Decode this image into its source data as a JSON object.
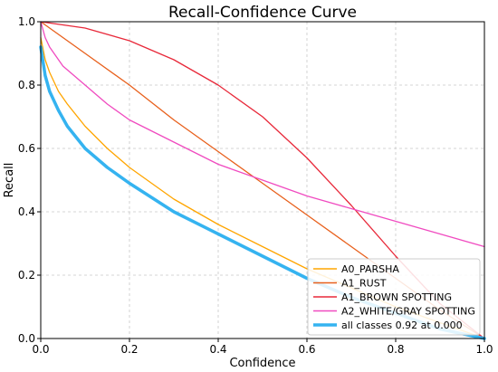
{
  "chart_data": {
    "type": "line",
    "title": "Recall-Confidence Curve",
    "xlabel": "Confidence",
    "ylabel": "Recall",
    "xlim": [
      0,
      1
    ],
    "ylim": [
      0,
      1
    ],
    "xticks": [
      "0.0",
      "0.2",
      "0.4",
      "0.6",
      "0.8",
      "1.0"
    ],
    "yticks": [
      "0.0",
      "0.2",
      "0.4",
      "0.6",
      "0.8",
      "1.0"
    ],
    "grid": true,
    "legend_position": "lower-right",
    "series": [
      {
        "name": "A0_PARSHA",
        "color": "#ffa500",
        "line_width": "normal",
        "x": [
          0.0,
          0.01,
          0.02,
          0.04,
          0.06,
          0.1,
          0.15,
          0.2,
          0.3,
          0.4,
          0.5,
          0.6,
          0.7,
          0.8,
          0.9,
          1.0
        ],
        "y": [
          0.95,
          0.88,
          0.84,
          0.78,
          0.74,
          0.67,
          0.6,
          0.54,
          0.44,
          0.36,
          0.29,
          0.22,
          0.16,
          0.1,
          0.05,
          0.0
        ]
      },
      {
        "name": "A1_RUST",
        "color": "#e8601c",
        "line_width": "normal",
        "x": [
          0.0,
          0.1,
          0.2,
          0.3,
          0.4,
          0.5,
          0.6,
          0.7,
          0.8,
          0.9,
          1.0
        ],
        "y": [
          1.0,
          0.9,
          0.8,
          0.69,
          0.59,
          0.49,
          0.39,
          0.29,
          0.19,
          0.09,
          0.0
        ]
      },
      {
        "name": "A1_BROWN SPOTTING",
        "color": "#e8293a",
        "line_width": "normal",
        "x": [
          0.0,
          0.05,
          0.1,
          0.2,
          0.3,
          0.4,
          0.5,
          0.6,
          0.7,
          0.8,
          0.9,
          1.0
        ],
        "y": [
          1.0,
          0.99,
          0.98,
          0.94,
          0.88,
          0.8,
          0.7,
          0.57,
          0.42,
          0.26,
          0.11,
          0.0
        ]
      },
      {
        "name": "A2_WHITE/GRAY SPOTTING",
        "color": "#f04bc0",
        "line_width": "normal",
        "x": [
          0.0,
          0.01,
          0.02,
          0.05,
          0.1,
          0.15,
          0.2,
          0.3,
          0.4,
          0.5,
          0.6,
          0.7,
          0.8,
          0.9,
          1.0
        ],
        "y": [
          1.0,
          0.95,
          0.92,
          0.86,
          0.8,
          0.74,
          0.69,
          0.62,
          0.55,
          0.5,
          0.45,
          0.41,
          0.37,
          0.33,
          0.29
        ]
      },
      {
        "name": "all classes 0.92 at 0.000",
        "color": "#35b3f0",
        "line_width": "bold",
        "x": [
          0.0,
          0.01,
          0.02,
          0.04,
          0.06,
          0.1,
          0.15,
          0.2,
          0.3,
          0.4,
          0.5,
          0.6,
          0.7,
          0.8,
          0.9,
          1.0
        ],
        "y": [
          0.92,
          0.83,
          0.78,
          0.72,
          0.67,
          0.6,
          0.54,
          0.49,
          0.4,
          0.33,
          0.26,
          0.19,
          0.13,
          0.08,
          0.03,
          0.0
        ]
      }
    ]
  }
}
